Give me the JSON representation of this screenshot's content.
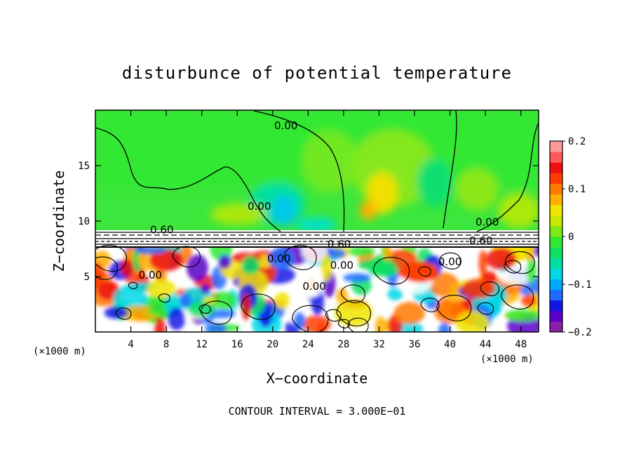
{
  "chart_data": {
    "type": "heatmap",
    "title": "disturbunce of potential temperature",
    "xlabel": "X−coordinate",
    "ylabel": "Z−coordinate",
    "x_unit": "(×1000 m)",
    "y_unit": "(×1000 m)",
    "xlim": [
      0,
      50
    ],
    "ylim": [
      0,
      20
    ],
    "x_ticks": [
      {
        "value": 4,
        "label": "4"
      },
      {
        "value": 8,
        "label": "8"
      },
      {
        "value": 12,
        "label": "12"
      },
      {
        "value": 16,
        "label": "16"
      },
      {
        "value": 20,
        "label": "20"
      },
      {
        "value": 24,
        "label": "24"
      },
      {
        "value": 28,
        "label": "28"
      },
      {
        "value": 32,
        "label": "32"
      },
      {
        "value": 36,
        "label": "36"
      },
      {
        "value": 40,
        "label": "40"
      },
      {
        "value": 44,
        "label": "44"
      },
      {
        "value": 48,
        "label": "48"
      }
    ],
    "y_ticks": [
      {
        "value": 5,
        "label": "5"
      },
      {
        "value": 10,
        "label": "10"
      },
      {
        "value": 15,
        "label": "15"
      }
    ],
    "colorbar": {
      "min": -0.2,
      "max": 0.2,
      "ticks": [
        {
          "value": 0.2,
          "label": "0.2"
        },
        {
          "value": 0.1,
          "label": "0.1"
        },
        {
          "value": 0,
          "label": "0"
        },
        {
          "value": -0.1,
          "label": "−0.1"
        },
        {
          "value": -0.2,
          "label": "−0.2"
        }
      ],
      "colors": [
        "#8a1fa8",
        "#5a00c8",
        "#1414e6",
        "#1e6cff",
        "#00aaff",
        "#00d8e6",
        "#00e0a0",
        "#10e060",
        "#30e830",
        "#7ee818",
        "#c8e800",
        "#f0e400",
        "#ffb000",
        "#ff7a00",
        "#ff3c00",
        "#ee1010",
        "#ff5a5a",
        "#ff9a9a"
      ]
    },
    "contour_labels": [
      {
        "x": 21.5,
        "y": 18.3,
        "text": "0.00"
      },
      {
        "x": 18.5,
        "y": 11.0,
        "text": "0.00"
      },
      {
        "x": 7.5,
        "y": 8.9,
        "text": "0.60"
      },
      {
        "x": 27.5,
        "y": 7.6,
        "text": "0.60"
      },
      {
        "x": 44.2,
        "y": 9.6,
        "text": "0.00"
      },
      {
        "x": 43.5,
        "y": 7.9,
        "text": "0.60"
      },
      {
        "x": 20.7,
        "y": 6.3,
        "text": "0.00"
      },
      {
        "x": 27.8,
        "y": 5.7,
        "text": "0.00"
      },
      {
        "x": 40.0,
        "y": 6.0,
        "text": "0.00"
      },
      {
        "x": 6.2,
        "y": 4.8,
        "text": "0.00"
      },
      {
        "x": 24.7,
        "y": 3.8,
        "text": "0.00"
      }
    ],
    "footer": "CONTOUR INTERVAL = 3.000E−01",
    "grid": false
  }
}
